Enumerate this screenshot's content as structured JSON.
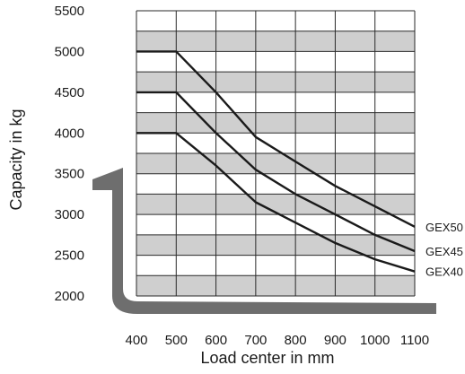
{
  "chart_data": {
    "type": "line",
    "xlabel": "Load center in mm",
    "ylabel": "Capacity in kg",
    "x_ticks": [
      "400",
      "500",
      "600",
      "700",
      "800",
      "900",
      "1000",
      "1100"
    ],
    "y_ticks": [
      "2000",
      "2500",
      "3000",
      "3500",
      "4000",
      "4500",
      "5000",
      "5500"
    ],
    "xlim": [
      400,
      1100
    ],
    "ylim": [
      2000,
      5500
    ],
    "grid": true,
    "band_colors": [
      "#ffffff",
      "#cfcfcf"
    ],
    "line_color": "#1a1a1a",
    "fork_color": "#6e6e6e",
    "series": [
      {
        "name": "GEX50",
        "x": [
          400,
          500,
          600,
          700,
          800,
          900,
          1000,
          1100
        ],
        "y": [
          5000,
          5000,
          4500,
          3950,
          3650,
          3350,
          3100,
          2850
        ]
      },
      {
        "name": "GEX45",
        "x": [
          400,
          500,
          600,
          700,
          800,
          900,
          1000,
          1100
        ],
        "y": [
          4500,
          4500,
          4000,
          3550,
          3250,
          3000,
          2750,
          2550
        ]
      },
      {
        "name": "GEX40",
        "x": [
          400,
          500,
          600,
          700,
          800,
          900,
          1000,
          1100
        ],
        "y": [
          4000,
          4000,
          3600,
          3150,
          2900,
          2650,
          2450,
          2300
        ]
      }
    ]
  }
}
